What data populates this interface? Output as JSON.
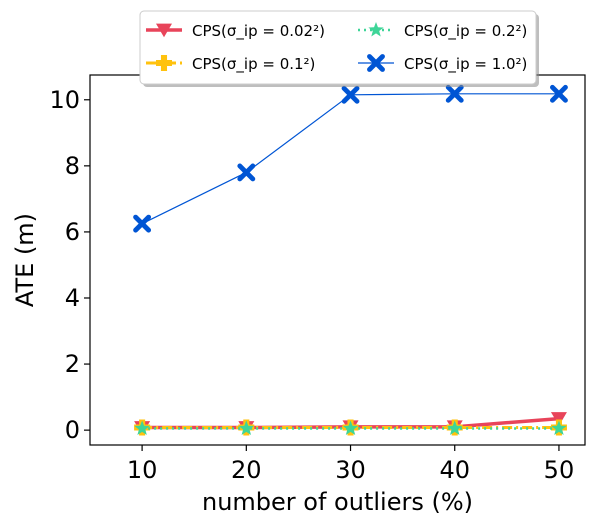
{
  "chart_data": {
    "type": "line",
    "xlabel": "number of outliers (%)",
    "ylabel": "ATE (m)",
    "x": [
      10,
      20,
      30,
      40,
      50
    ],
    "xticks": [
      10,
      20,
      30,
      40,
      50
    ],
    "yticks": [
      0,
      2,
      4,
      6,
      8,
      10
    ],
    "xlim": [
      5,
      52.5
    ],
    "ylim": [
      -0.45,
      10.75
    ],
    "grid": false,
    "legend": {
      "placement": "top-center",
      "columns": 2
    },
    "series": [
      {
        "name": "CPS(σ_ip = 0.02²)",
        "color": "#e8445a",
        "marker": "triangle-down",
        "linestyle": "solid",
        "values": [
          0.08,
          0.08,
          0.1,
          0.1,
          0.35
        ]
      },
      {
        "name": "CPS(σ_ip = 0.1²)",
        "color": "#ffc20e",
        "marker": "plus",
        "linestyle": "dashdot",
        "values": [
          0.08,
          0.08,
          0.08,
          0.08,
          0.08
        ]
      },
      {
        "name": "CPS(σ_ip = 0.2²)",
        "color": "#3ed598",
        "marker": "star",
        "linestyle": "dotted",
        "values": [
          0.05,
          0.05,
          0.05,
          0.05,
          0.05
        ]
      },
      {
        "name": "CPS(σ_ip = 1.0²)",
        "color": "#0055d4",
        "marker": "x-filled",
        "linestyle": "solid",
        "values": [
          6.25,
          7.8,
          10.15,
          10.18,
          10.18
        ]
      }
    ]
  }
}
